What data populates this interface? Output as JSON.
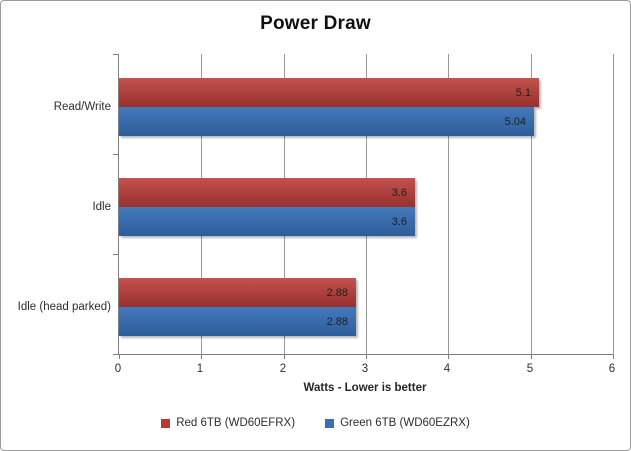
{
  "frame": {
    "background": "#FFFFFF",
    "border_color": "#9C9C9C"
  },
  "axis_colors": {
    "axis_line": "#7F7F7F",
    "gridline": "#9B9B9B"
  },
  "chart_data": {
    "type": "bar",
    "orientation": "horizontal",
    "title": "Power Draw",
    "categories": [
      "Read/Write",
      "Idle",
      "Idle (head parked)"
    ],
    "series": [
      {
        "name": "Red 6TB (WD60EFRX)",
        "values": [
          5.1,
          3.6,
          2.88
        ],
        "labels": [
          "5.1",
          "3.6",
          "2.88"
        ],
        "gradient_top": "#C4524E",
        "gradient_bottom": "#97302E",
        "legend_color": "#B43A38"
      },
      {
        "name": "Green 6TB (WD60EZRX)",
        "values": [
          5.04,
          3.6,
          2.88
        ],
        "labels": [
          "5.04",
          "3.6",
          "2.88"
        ],
        "gradient_top": "#4379BE",
        "gradient_bottom": "#2E5D99",
        "legend_color": "#3B6FB4"
      }
    ],
    "xlabel": "Watts - Lower is better",
    "xlim": [
      0,
      6
    ],
    "xticks": [
      "0",
      "1",
      "2",
      "3",
      "4",
      "5",
      "6"
    ],
    "grid": true,
    "legend_position": "bottom"
  }
}
